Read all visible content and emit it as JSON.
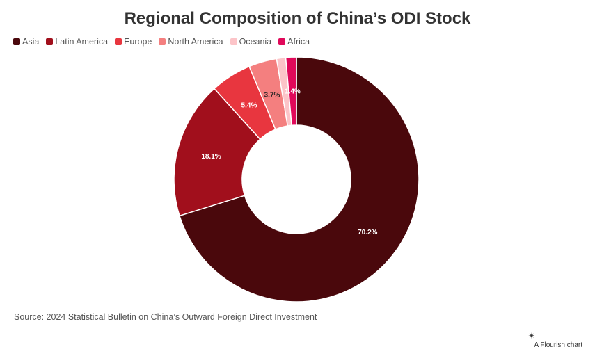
{
  "title": "Regional Composition of China’s ODI Stock",
  "source": "Source: 2024 Statistical Bulletin on China’s Outward Foreign Direct Investment",
  "credit": {
    "icon": "flourish-logo-icon",
    "text": "A Flourish chart"
  },
  "chart_data": {
    "type": "pie",
    "subtype": "donut",
    "categories": [
      "Asia",
      "Latin America",
      "Europe",
      "North America",
      "Oceania",
      "Africa"
    ],
    "values": [
      70.2,
      18.1,
      5.4,
      3.7,
      1.2,
      1.4
    ],
    "labels": [
      "70.2%",
      "18.1%",
      "5.4%",
      "3.7%",
      "",
      "1.4%"
    ],
    "colors": [
      "#4a080c",
      "#a10f1c",
      "#e8363f",
      "#f47f7f",
      "#fcc4c8",
      "#e0095a"
    ],
    "label_colors": [
      "#ffffff",
      "#ffffff",
      "#ffffff",
      "#222222",
      "#222222",
      "#ffffff"
    ],
    "legend_position": "top-left"
  }
}
